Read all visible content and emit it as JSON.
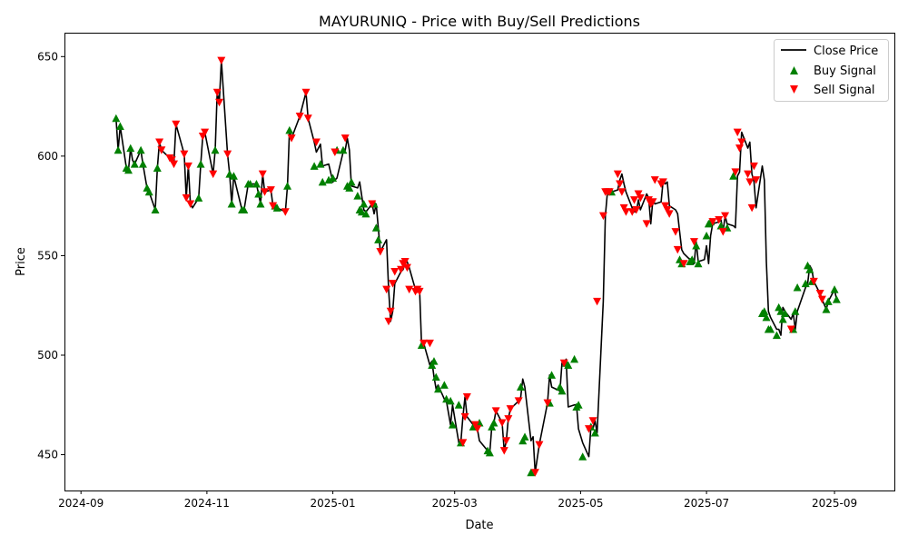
{
  "chart_data": {
    "type": "line",
    "title": "MAYURUNIQ - Price with Buy/Sell Predictions",
    "xlabel": "Date",
    "ylabel": "Price",
    "xlim": [
      "2024-08-24",
      "2025-09-30"
    ],
    "ylim": [
      432,
      662
    ],
    "x_ticks": [
      "2024-09-01",
      "2024-11-01",
      "2025-01-01",
      "2025-03-01",
      "2025-05-01",
      "2025-07-01",
      "2025-09-01"
    ],
    "x_tick_labels": [
      "2024-09",
      "2024-11",
      "2025-01",
      "2025-03",
      "2025-05",
      "2025-07",
      "2025-09"
    ],
    "y_ticks": [
      450,
      500,
      550,
      600,
      650
    ],
    "grid": false,
    "legend": {
      "placement": "top-right",
      "entries": [
        "Close Price",
        "Buy Signal",
        "Sell Signal"
      ]
    },
    "colors": {
      "line": "#000000",
      "buy": "#008000",
      "sell": "#ff0000"
    },
    "series": [
      {
        "name": "Close Price",
        "x": [
          "2024-09-18",
          "2024-09-19",
          "2024-09-20",
          "2024-09-23",
          "2024-09-24",
          "2024-09-25",
          "2024-09-26",
          "2024-09-27",
          "2024-09-30",
          "2024-10-01",
          "2024-10-03",
          "2024-10-04",
          "2024-10-07",
          "2024-10-08",
          "2024-10-09",
          "2024-10-10",
          "2024-10-14",
          "2024-10-15",
          "2024-10-16",
          "2024-10-17",
          "2024-10-21",
          "2024-10-22",
          "2024-10-23",
          "2024-10-24",
          "2024-10-25",
          "2024-10-28",
          "2024-10-29",
          "2024-10-30",
          "2024-10-31",
          "2024-11-04",
          "2024-11-05",
          "2024-11-06",
          "2024-11-07",
          "2024-11-08",
          "2024-11-11",
          "2024-11-12",
          "2024-11-13",
          "2024-11-14",
          "2024-11-18",
          "2024-11-19",
          "2024-11-21",
          "2024-11-22",
          "2024-11-25",
          "2024-11-26",
          "2024-11-27",
          "2024-11-28",
          "2024-11-29",
          "2024-12-02",
          "2024-12-03",
          "2024-12-04",
          "2024-12-05",
          "2024-12-09",
          "2024-12-10",
          "2024-12-11",
          "2024-12-12",
          "2024-12-16",
          "2024-12-19",
          "2024-12-20",
          "2024-12-23",
          "2024-12-24",
          "2024-12-26",
          "2024-12-27",
          "2024-12-30",
          "2025-01-01",
          "2025-01-02",
          "2025-01-03",
          "2025-01-06",
          "2025-01-07",
          "2025-01-08",
          "2025-01-09",
          "2025-01-10",
          "2025-01-13",
          "2025-01-14",
          "2025-01-15",
          "2025-01-16",
          "2025-01-17",
          "2025-01-20",
          "2025-01-21",
          "2025-01-22",
          "2025-01-23",
          "2025-01-24",
          "2025-01-27",
          "2025-01-28",
          "2025-01-29",
          "2025-01-30",
          "2025-01-31",
          "2025-02-03",
          "2025-02-04",
          "2025-02-05",
          "2025-02-06",
          "2025-02-07",
          "2025-02-10",
          "2025-02-11",
          "2025-02-12",
          "2025-02-13",
          "2025-02-14",
          "2025-02-17",
          "2025-02-18",
          "2025-02-19",
          "2025-02-20",
          "2025-02-21",
          "2025-02-24",
          "2025-02-25",
          "2025-02-27",
          "2025-02-28",
          "2025-03-03",
          "2025-03-04",
          "2025-03-05",
          "2025-03-06",
          "2025-03-07",
          "2025-03-10",
          "2025-03-11",
          "2025-03-12",
          "2025-03-13",
          "2025-03-17",
          "2025-03-18",
          "2025-03-19",
          "2025-03-20",
          "2025-03-21",
          "2025-03-24",
          "2025-03-25",
          "2025-03-26",
          "2025-03-27",
          "2025-03-28",
          "2025-04-01",
          "2025-04-02",
          "2025-04-03",
          "2025-04-04",
          "2025-04-07",
          "2025-04-08",
          "2025-04-09",
          "2025-04-11",
          "2025-04-15",
          "2025-04-16",
          "2025-04-17",
          "2025-04-21",
          "2025-04-22",
          "2025-04-23",
          "2025-04-24",
          "2025-04-25",
          "2025-04-28",
          "2025-04-29",
          "2025-04-30",
          "2025-05-02",
          "2025-05-05",
          "2025-05-06",
          "2025-05-07",
          "2025-05-08",
          "2025-05-09",
          "2025-05-12",
          "2025-05-13",
          "2025-05-14",
          "2025-05-15",
          "2025-05-16",
          "2025-05-19",
          "2025-05-20",
          "2025-05-21",
          "2025-05-22",
          "2025-05-23",
          "2025-05-26",
          "2025-05-27",
          "2025-05-28",
          "2025-05-29",
          "2025-05-30",
          "2025-06-02",
          "2025-06-03",
          "2025-06-04",
          "2025-06-05",
          "2025-06-06",
          "2025-06-09",
          "2025-06-10",
          "2025-06-11",
          "2025-06-12",
          "2025-06-13",
          "2025-06-16",
          "2025-06-17",
          "2025-06-18",
          "2025-06-19",
          "2025-06-20",
          "2025-06-23",
          "2025-06-24",
          "2025-06-25",
          "2025-06-26",
          "2025-06-27",
          "2025-06-30",
          "2025-07-01",
          "2025-07-02",
          "2025-07-03",
          "2025-07-04",
          "2025-07-07",
          "2025-07-08",
          "2025-07-09",
          "2025-07-10",
          "2025-07-11",
          "2025-07-14",
          "2025-07-15",
          "2025-07-16",
          "2025-07-17",
          "2025-07-18",
          "2025-07-21",
          "2025-07-22",
          "2025-07-23",
          "2025-07-24",
          "2025-07-25",
          "2025-07-28",
          "2025-07-29",
          "2025-07-30",
          "2025-07-31",
          "2025-08-01",
          "2025-08-04",
          "2025-08-05",
          "2025-08-06",
          "2025-08-07",
          "2025-08-08",
          "2025-08-11",
          "2025-08-12",
          "2025-08-13",
          "2025-08-14",
          "2025-08-18",
          "2025-08-19",
          "2025-08-20",
          "2025-08-21",
          "2025-08-22",
          "2025-08-25",
          "2025-08-26",
          "2025-08-28",
          "2025-08-29",
          "2025-09-01",
          "2025-09-02"
        ],
        "values": [
          619,
          603,
          615,
          594,
          593,
          604,
          598,
          596,
          603,
          596,
          584,
          582,
          573,
          594,
          607,
          603,
          599,
          598,
          596,
          616,
          601,
          579,
          595,
          576,
          574,
          579,
          596,
          610,
          612,
          591,
          603,
          632,
          627,
          648,
          601,
          591,
          576,
          590,
          573,
          573,
          586,
          586,
          586,
          581,
          576,
          591,
          582,
          583,
          575,
          575,
          574,
          572,
          585,
          613,
          609,
          620,
          632,
          619,
          607,
          602,
          606,
          595,
          596,
          587,
          588,
          589,
          602,
          603,
          609,
          603,
          585,
          584,
          587,
          580,
          573,
          572,
          576,
          571,
          576,
          564,
          552,
          558,
          533,
          517,
          522,
          536,
          542,
          543,
          546,
          547,
          544,
          533,
          532,
          533,
          505,
          506,
          495,
          497,
          489,
          483,
          485,
          478,
          477,
          465,
          475,
          456,
          456,
          469,
          479,
          469,
          465,
          463,
          463,
          457,
          452,
          451,
          464,
          466,
          472,
          466,
          452,
          457,
          468,
          473,
          477,
          479,
          488,
          484,
          457,
          459,
          441,
          455,
          476,
          490,
          484,
          482,
          496,
          495,
          498,
          474,
          475,
          475,
          463,
          456,
          449,
          464,
          463,
          467,
          461,
          527,
          570,
          582,
          582,
          582,
          583,
          588,
          591,
          586,
          582,
          574,
          572,
          572,
          578,
          573,
          581,
          579,
          566,
          578,
          576,
          577,
          588,
          586,
          587,
          575,
          573,
          571,
          562,
          553,
          551,
          548,
          546,
          546,
          557,
          547,
          548,
          555,
          546,
          560,
          566,
          567,
          568,
          562,
          570,
          566,
          565,
          564,
          590,
          592,
          612,
          604,
          607,
          591,
          587,
          574,
          595,
          588,
          547,
          522,
          519,
          513,
          513,
          510,
          524,
          522,
          518,
          521,
          513,
          522,
          534,
          536,
          545,
          543,
          537,
          531,
          528,
          523,
          527,
          533,
          528
        ],
        "color": "#000000"
      },
      {
        "name": "Buy Signal",
        "x": [
          "2024-09-18",
          "2024-09-19",
          "2024-09-20",
          "2024-09-23",
          "2024-09-24",
          "2024-09-25",
          "2024-09-27",
          "2024-09-30",
          "2024-10-01",
          "2024-10-03",
          "2024-10-04",
          "2024-10-07",
          "2024-10-08",
          "2024-10-28",
          "2024-10-29",
          "2024-11-05",
          "2024-11-12",
          "2024-11-13",
          "2024-11-14",
          "2024-11-18",
          "2024-11-19",
          "2024-11-21",
          "2024-11-22",
          "2024-11-25",
          "2024-11-26",
          "2024-11-27",
          "2024-12-04",
          "2024-12-05",
          "2024-12-10",
          "2024-12-11",
          "2024-12-23",
          "2024-12-26",
          "2024-12-27",
          "2024-12-30",
          "2025-01-01",
          "2025-01-03",
          "2025-01-06",
          "2025-01-08",
          "2025-01-09",
          "2025-01-10",
          "2025-01-13",
          "2025-01-14",
          "2025-01-15",
          "2025-01-16",
          "2025-01-17",
          "2025-01-21",
          "2025-01-22",
          "2025-01-23",
          "2025-02-13",
          "2025-02-18",
          "2025-02-19",
          "2025-02-20",
          "2025-02-21",
          "2025-02-24",
          "2025-02-25",
          "2025-02-27",
          "2025-02-28",
          "2025-03-03",
          "2025-03-04",
          "2025-03-10",
          "2025-03-13",
          "2025-03-17",
          "2025-03-18",
          "2025-03-19",
          "2025-03-20",
          "2025-04-02",
          "2025-04-03",
          "2025-04-04",
          "2025-04-07",
          "2025-04-16",
          "2025-04-17",
          "2025-04-21",
          "2025-04-22",
          "2025-04-24",
          "2025-04-25",
          "2025-04-28",
          "2025-04-29",
          "2025-04-30",
          "2025-05-02",
          "2025-05-06",
          "2025-05-08",
          "2025-05-16",
          "2025-06-18",
          "2025-06-19",
          "2025-06-23",
          "2025-06-24",
          "2025-06-26",
          "2025-06-27",
          "2025-07-01",
          "2025-07-02",
          "2025-07-03",
          "2025-07-08",
          "2025-07-11",
          "2025-07-14",
          "2025-07-28",
          "2025-07-29",
          "2025-07-30",
          "2025-07-31",
          "2025-08-01",
          "2025-08-04",
          "2025-08-05",
          "2025-08-06",
          "2025-08-07",
          "2025-08-08",
          "2025-08-12",
          "2025-08-13",
          "2025-08-14",
          "2025-08-18",
          "2025-08-19",
          "2025-08-20",
          "2025-08-21",
          "2025-08-28",
          "2025-08-29",
          "2025-09-01",
          "2025-09-02"
        ],
        "values": [
          619,
          603,
          615,
          594,
          593,
          604,
          596,
          603,
          596,
          584,
          582,
          573,
          594,
          579,
          596,
          603,
          591,
          576,
          590,
          573,
          573,
          586,
          586,
          586,
          581,
          576,
          575,
          574,
          585,
          613,
          595,
          596,
          587,
          588,
          589,
          603,
          603,
          585,
          584,
          587,
          580,
          573,
          572,
          576,
          571,
          576,
          564,
          558,
          505,
          495,
          497,
          489,
          483,
          485,
          478,
          477,
          465,
          475,
          456,
          464,
          466,
          452,
          451,
          464,
          466,
          484,
          457,
          459,
          441,
          476,
          490,
          484,
          482,
          496,
          495,
          498,
          474,
          475,
          449,
          464,
          461,
          582,
          548,
          546,
          547,
          548,
          555,
          546,
          560,
          566,
          567,
          565,
          564,
          590,
          521,
          522,
          519,
          513,
          513,
          510,
          524,
          522,
          518,
          521,
          513,
          522,
          534,
          536,
          545,
          543,
          537,
          523,
          527,
          533,
          528
        ],
        "color": "#008000"
      },
      {
        "name": "Sell Signal",
        "x": [
          "2024-10-09",
          "2024-10-10",
          "2024-10-14",
          "2024-10-15",
          "2024-10-16",
          "2024-10-17",
          "2024-10-21",
          "2024-10-22",
          "2024-10-23",
          "2024-10-24",
          "2024-10-30",
          "2024-10-31",
          "2024-11-04",
          "2024-11-06",
          "2024-11-07",
          "2024-11-08",
          "2024-11-11",
          "2024-11-28",
          "2024-11-29",
          "2024-12-02",
          "2024-12-03",
          "2024-12-09",
          "2024-12-12",
          "2024-12-16",
          "2024-12-19",
          "2024-12-20",
          "2024-12-24",
          "2025-01-02",
          "2025-01-07",
          "2025-01-20",
          "2025-01-24",
          "2025-01-27",
          "2025-01-28",
          "2025-01-29",
          "2025-01-30",
          "2025-01-31",
          "2025-02-03",
          "2025-02-04",
          "2025-02-05",
          "2025-02-06",
          "2025-02-07",
          "2025-02-10",
          "2025-02-11",
          "2025-02-12",
          "2025-02-14",
          "2025-02-17",
          "2025-03-05",
          "2025-03-06",
          "2025-03-07",
          "2025-03-11",
          "2025-03-12",
          "2025-03-21",
          "2025-03-24",
          "2025-03-25",
          "2025-03-26",
          "2025-03-27",
          "2025-03-28",
          "2025-04-01",
          "2025-04-09",
          "2025-04-11",
          "2025-04-15",
          "2025-04-23",
          "2025-05-05",
          "2025-05-07",
          "2025-05-09",
          "2025-05-12",
          "2025-05-13",
          "2025-05-14",
          "2025-05-15",
          "2025-05-19",
          "2025-05-20",
          "2025-05-21",
          "2025-05-22",
          "2025-05-23",
          "2025-05-26",
          "2025-05-27",
          "2025-05-28",
          "2025-05-29",
          "2025-05-30",
          "2025-06-02",
          "2025-06-03",
          "2025-06-04",
          "2025-06-05",
          "2025-06-06",
          "2025-06-09",
          "2025-06-10",
          "2025-06-11",
          "2025-06-12",
          "2025-06-13",
          "2025-06-16",
          "2025-06-17",
          "2025-06-20",
          "2025-06-25",
          "2025-07-04",
          "2025-07-07",
          "2025-07-09",
          "2025-07-10",
          "2025-07-15",
          "2025-07-16",
          "2025-07-17",
          "2025-07-18",
          "2025-07-21",
          "2025-07-22",
          "2025-07-23",
          "2025-07-24",
          "2025-07-25",
          "2025-08-11",
          "2025-08-22",
          "2025-08-25",
          "2025-08-26"
        ],
        "values": [
          607,
          603,
          599,
          598,
          596,
          616,
          601,
          579,
          595,
          576,
          610,
          612,
          591,
          632,
          627,
          648,
          601,
          591,
          582,
          583,
          575,
          572,
          609,
          620,
          632,
          619,
          607,
          602,
          609,
          576,
          552,
          533,
          517,
          522,
          536,
          542,
          543,
          546,
          547,
          544,
          533,
          532,
          533,
          532,
          506,
          506,
          456,
          469,
          479,
          465,
          463,
          472,
          466,
          452,
          457,
          468,
          473,
          477,
          441,
          455,
          476,
          496,
          463,
          467,
          527,
          570,
          582,
          582,
          582,
          591,
          586,
          582,
          574,
          572,
          572,
          578,
          573,
          581,
          579,
          566,
          578,
          576,
          577,
          588,
          586,
          587,
          575,
          573,
          571,
          562,
          553,
          546,
          557,
          567,
          568,
          562,
          570,
          592,
          612,
          604,
          607,
          591,
          587,
          574,
          595,
          588,
          513,
          537,
          531,
          528
        ],
        "color": "#ff0000"
      }
    ]
  }
}
